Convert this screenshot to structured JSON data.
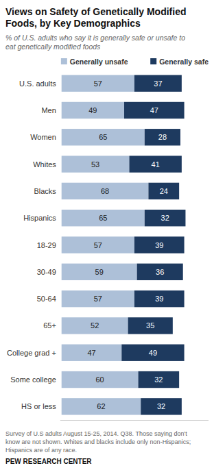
{
  "chart_data": {
    "type": "bar",
    "orientation": "horizontal",
    "stacked": true,
    "data_labels": true,
    "tick_labels": "y",
    "grid": false,
    "title": "Views on Safety of Genetically Modified\nFoods, by Key Demographics",
    "subtitle": "% of U.S. adults who say it is generally safe or unsafe to\neat genetically modified foods",
    "categories": [
      "U.S. adults",
      "Men",
      "Women",
      "Whites",
      "Blacks",
      "Hispanics",
      "18-29",
      "30-49",
      "50-64",
      "65+",
      "College grad +",
      "Some college",
      "HS or less"
    ],
    "series": [
      {
        "name": "Generally unsafe",
        "color": "#adc0d8",
        "values": [
          57,
          49,
          65,
          53,
          68,
          65,
          57,
          59,
          57,
          52,
          47,
          60,
          62
        ]
      },
      {
        "name": "Generally safe",
        "color": "#1e3a5f",
        "values": [
          37,
          47,
          28,
          41,
          24,
          32,
          39,
          36,
          39,
          35,
          49,
          32,
          32
        ]
      }
    ],
    "xlim": [
      -1,
      115
    ],
    "footnote": "Survey of U.S adults August 15-25, 2014. Q38. Those saying don't\nknow are not shown. Whites and blacks include only non-Hispanics;\nHispanics are of any race.",
    "source": "PEW RESEARCH CENTER"
  }
}
